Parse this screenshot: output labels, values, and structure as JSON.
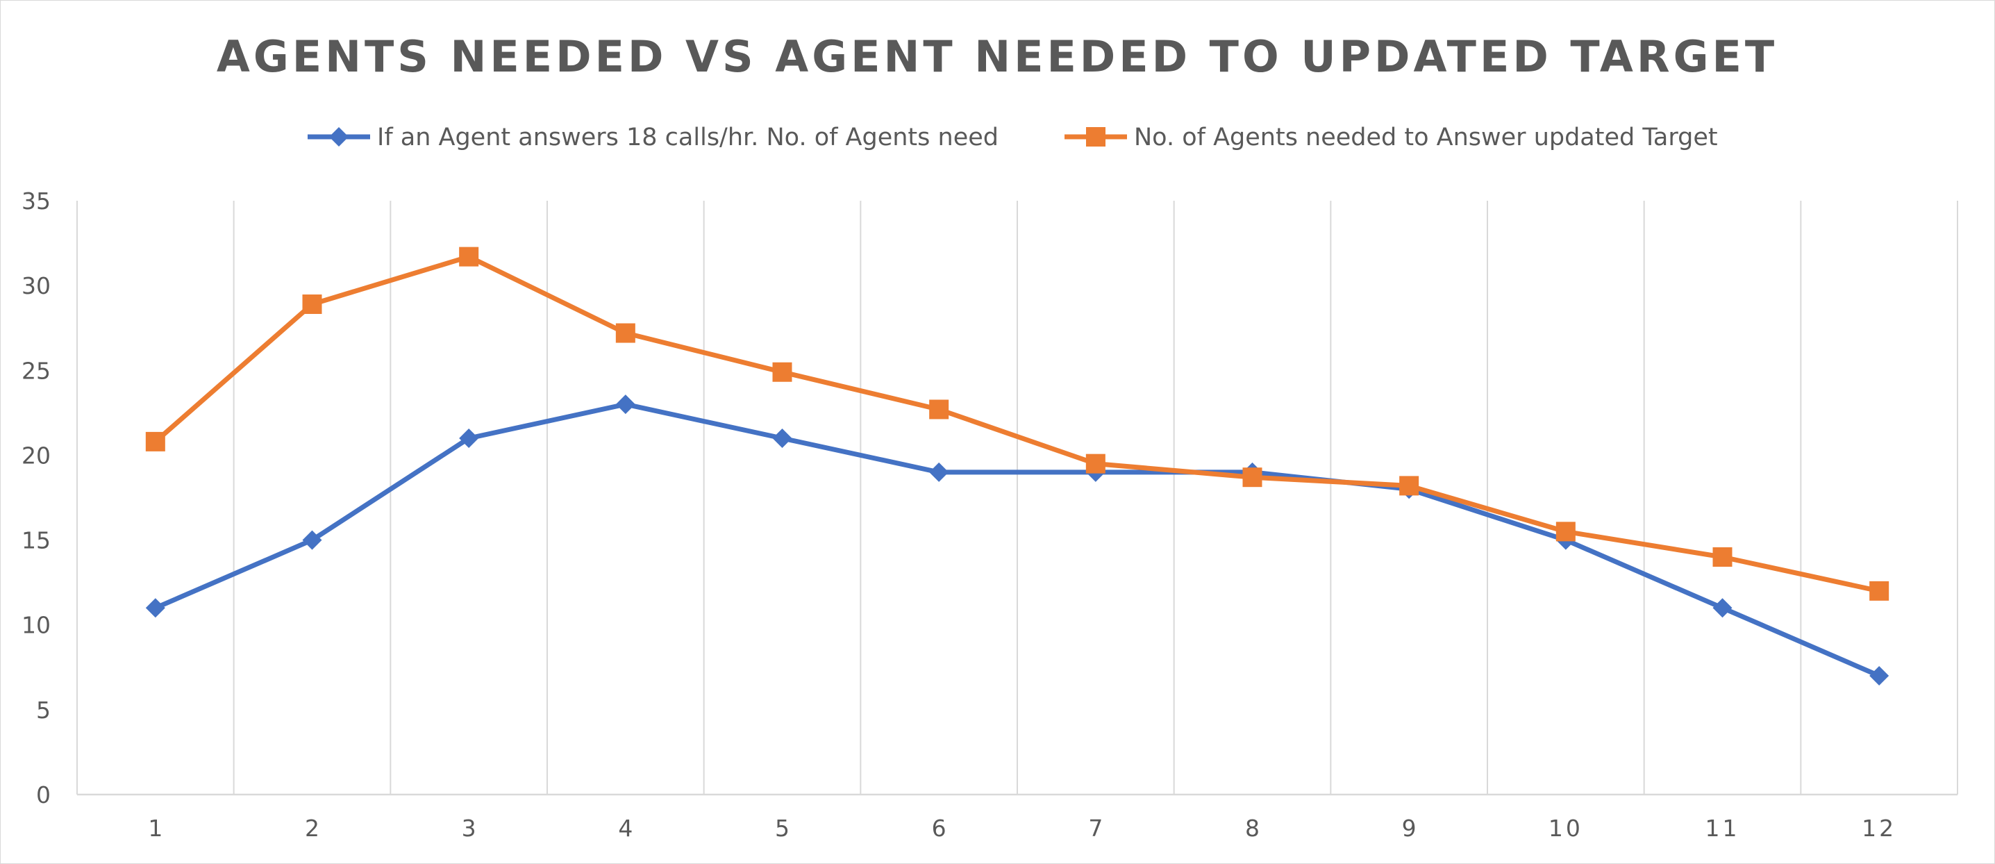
{
  "chart_data": {
    "type": "line",
    "title": "AGENTS NEEDED VS AGENT NEEDED TO UPDATED TARGET",
    "xlabel": "",
    "ylabel": "",
    "categories": [
      "1",
      "2",
      "3",
      "4",
      "5",
      "6",
      "7",
      "8",
      "9",
      "10",
      "11",
      "12"
    ],
    "ylim": [
      0,
      35
    ],
    "yticks": [
      0,
      5,
      10,
      15,
      20,
      25,
      30,
      35
    ],
    "grid": "vertical",
    "legend_position": "top",
    "series": [
      {
        "name": "If an Agent answers 18 calls/hr. No. of Agents need",
        "color": "#4472C4",
        "marker": "diamond",
        "values": [
          11,
          15,
          21,
          23,
          21,
          19,
          19,
          19,
          18,
          15,
          11,
          7
        ]
      },
      {
        "name": "No. of Agents needed to Answer updated Target",
        "color": "#ED7D31",
        "marker": "square",
        "values": [
          20.8,
          28.9,
          31.7,
          27.2,
          24.9,
          22.7,
          19.5,
          18.7,
          18.2,
          15.5,
          14,
          12
        ]
      }
    ]
  }
}
